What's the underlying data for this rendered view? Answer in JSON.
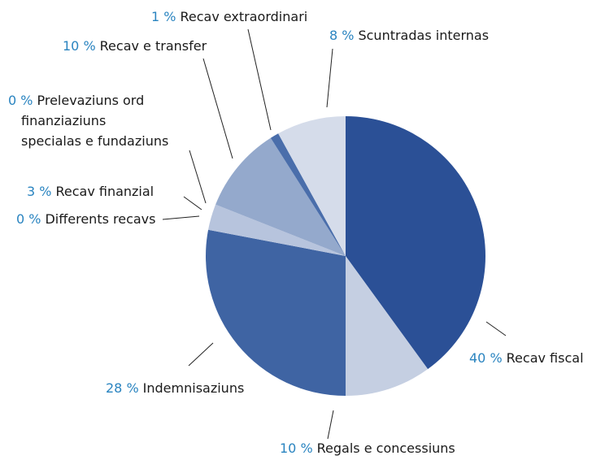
{
  "chart_data": {
    "type": "pie",
    "categories": [
      "Recav fiscal",
      "Regals e concessiuns",
      "Indemnisaziuns",
      "Differents recavs",
      "Recav finanzial",
      "Prelevaziuns ord finanziaziuns specialas e fundaziuns",
      "Recav e transfer",
      "Recav extraordinari",
      "Scuntradas internas"
    ],
    "values": [
      40,
      10,
      28,
      0,
      3,
      0,
      10,
      1,
      8
    ],
    "value_labels": [
      "40 %",
      "10 %",
      "28 %",
      "0 %",
      "3 %",
      "0 %",
      "10 %",
      "1 %",
      "8 %"
    ],
    "colors": [
      "#2b5096",
      "#c5cfe2",
      "#3f64a3",
      "#b6c3dc",
      "#b7c4dd",
      "#a9b8d5",
      "#94a9cc",
      "#4a6eab",
      "#d5dcea"
    ]
  }
}
